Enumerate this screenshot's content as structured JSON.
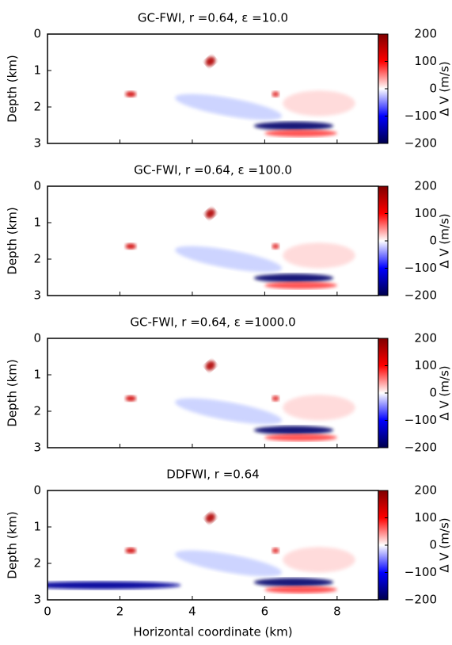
{
  "chart_data": [
    {
      "type": "heatmap",
      "title": "GC-FWI, r =0.64, ε =10.0",
      "ylabel": "Depth (km)",
      "xlim": [
        0,
        9.14
      ],
      "xticks": [
        0,
        2,
        4,
        6,
        8
      ],
      "ylim": [
        3,
        0
      ],
      "yticks": [
        0,
        1,
        2,
        3
      ],
      "colormap": "seismic",
      "colorbar": {
        "label": "Δ V (m/s)",
        "lim": [
          -200,
          200
        ],
        "ticks": [
          200,
          100,
          0,
          {
            "value": -100,
            "label": "−100"
          },
          {
            "value": -200,
            "label": "−200"
          }
        ]
      }
    },
    {
      "type": "heatmap",
      "title": "GC-FWI, r =0.64, ε =100.0",
      "ylabel": "Depth (km)",
      "xlim": [
        0,
        9.14
      ],
      "xticks": [
        0,
        2,
        4,
        6,
        8
      ],
      "ylim": [
        3,
        0
      ],
      "yticks": [
        0,
        1,
        2,
        3
      ],
      "colormap": "seismic",
      "colorbar": {
        "label": "Δ V (m/s)",
        "lim": [
          -200,
          200
        ],
        "ticks": [
          200,
          100,
          0,
          {
            "value": -100,
            "label": "−100"
          },
          {
            "value": -200,
            "label": "−200"
          }
        ]
      }
    },
    {
      "type": "heatmap",
      "title": "GC-FWI, r =0.64, ε =1000.0",
      "ylabel": "Depth (km)",
      "xlim": [
        0,
        9.14
      ],
      "xticks": [
        0,
        2,
        4,
        6,
        8
      ],
      "ylim": [
        3,
        0
      ],
      "yticks": [
        0,
        1,
        2,
        3
      ],
      "colormap": "seismic",
      "colorbar": {
        "label": "Δ V (m/s)",
        "lim": [
          -200,
          200
        ],
        "ticks": [
          200,
          100,
          0,
          {
            "value": -100,
            "label": "−100"
          },
          {
            "value": -200,
            "label": "−200"
          }
        ]
      }
    },
    {
      "type": "heatmap",
      "title": "DDFWI, r =0.64",
      "ylabel": "Depth (km)",
      "xlabel": "Horizontal coordinate (km)",
      "xlim": [
        0,
        9.14
      ],
      "xticks": [
        0,
        2,
        4,
        6,
        8
      ],
      "xtick_labels": true,
      "ylim": [
        3,
        0
      ],
      "yticks": [
        0,
        1,
        2,
        3
      ],
      "colormap": "seismic",
      "colorbar": {
        "label": "Δ V (m/s)",
        "lim": [
          -200,
          200
        ],
        "ticks": [
          200,
          100,
          0,
          {
            "value": -100,
            "label": "−100"
          },
          {
            "value": -200,
            "label": "−200"
          }
        ]
      }
    }
  ]
}
